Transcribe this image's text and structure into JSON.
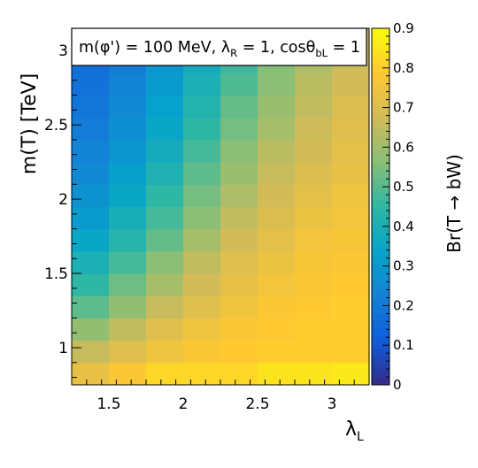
{
  "chart_data": {
    "type": "heatmap",
    "title_parts": {
      "p1": "m(φ') = 100 MeV, λ",
      "s1": "R",
      "p2": " = 1, cosθ",
      "s2": "bL",
      "p3": " = 1"
    },
    "xlabel": {
      "main": "λ",
      "sub": "L"
    },
    "ylabel": "m(T) [TeV]",
    "zlabel": "Br(T → bW)",
    "x_edges": [
      1.25,
      1.5,
      1.75,
      2.0,
      2.25,
      2.5,
      2.75,
      3.0,
      3.25
    ],
    "y_edges": [
      0.75,
      0.9,
      1.05,
      1.2,
      1.35,
      1.5,
      1.65,
      1.8,
      1.95,
      2.1,
      2.25,
      2.4,
      2.55,
      2.7,
      2.85,
      3.0,
      3.15
    ],
    "xlim": [
      1.25,
      3.25
    ],
    "ylim": [
      0.75,
      3.15
    ],
    "zlim": [
      0,
      0.9
    ],
    "x_ticks": [
      {
        "v": 1.5,
        "label": "1.5"
      },
      {
        "v": 2,
        "label": "2"
      },
      {
        "v": 2.5,
        "label": "2.5"
      },
      {
        "v": 3,
        "label": "3"
      }
    ],
    "y_ticks": [
      {
        "v": 1,
        "label": "1"
      },
      {
        "v": 1.5,
        "label": "1.5"
      },
      {
        "v": 2,
        "label": "2"
      },
      {
        "v": 2.5,
        "label": "2.5"
      },
      {
        "v": 3,
        "label": "3"
      }
    ],
    "z_ticks": [
      {
        "v": 0,
        "label": "0"
      },
      {
        "v": 0.1,
        "label": "0.1"
      },
      {
        "v": 0.2,
        "label": "0.2"
      },
      {
        "v": 0.3,
        "label": "0.3"
      },
      {
        "v": 0.4,
        "label": "0.4"
      },
      {
        "v": 0.5,
        "label": "0.5"
      },
      {
        "v": 0.6,
        "label": "0.6"
      },
      {
        "v": 0.7,
        "label": "0.7"
      },
      {
        "v": 0.8,
        "label": "0.8"
      },
      {
        "v": 0.9,
        "label": "0.9"
      }
    ],
    "values": [
      [
        0.73,
        0.78,
        0.82,
        0.82,
        0.82,
        0.85,
        0.85,
        0.86
      ],
      [
        0.66,
        0.71,
        0.75,
        0.78,
        0.79,
        0.8,
        0.8,
        0.8
      ],
      [
        0.58,
        0.65,
        0.71,
        0.75,
        0.78,
        0.79,
        0.8,
        0.8
      ],
      [
        0.51,
        0.58,
        0.66,
        0.71,
        0.75,
        0.78,
        0.79,
        0.8
      ],
      [
        0.45,
        0.53,
        0.61,
        0.68,
        0.73,
        0.76,
        0.78,
        0.79
      ],
      [
        0.4,
        0.48,
        0.57,
        0.65,
        0.71,
        0.74,
        0.77,
        0.78
      ],
      [
        0.35,
        0.43,
        0.52,
        0.61,
        0.68,
        0.72,
        0.76,
        0.77
      ],
      [
        0.31,
        0.39,
        0.48,
        0.57,
        0.65,
        0.7,
        0.74,
        0.76
      ],
      [
        0.28,
        0.35,
        0.45,
        0.54,
        0.62,
        0.68,
        0.72,
        0.75
      ],
      [
        0.25,
        0.32,
        0.41,
        0.51,
        0.59,
        0.66,
        0.7,
        0.73
      ],
      [
        0.23,
        0.29,
        0.38,
        0.48,
        0.57,
        0.64,
        0.68,
        0.72
      ],
      [
        0.21,
        0.27,
        0.35,
        0.45,
        0.54,
        0.61,
        0.67,
        0.71
      ],
      [
        0.19,
        0.25,
        0.33,
        0.42,
        0.52,
        0.59,
        0.65,
        0.7
      ],
      [
        0.18,
        0.23,
        0.31,
        0.4,
        0.49,
        0.57,
        0.64,
        0.68
      ],
      [
        0.17,
        0.21,
        0.29,
        0.38,
        0.47,
        0.56,
        0.62,
        0.67
      ],
      [
        0.16,
        0.2,
        0.27,
        0.36,
        0.45,
        0.54,
        0.6,
        0.66
      ]
    ],
    "colorscale": [
      "#352a87",
      "#0f5cdd",
      "#1481d6",
      "#06a4ca",
      "#2eb7a4",
      "#87bf77",
      "#d1bb59",
      "#fec832",
      "#f9fb0e"
    ],
    "colors": {
      "background": "#ffffff",
      "axis": "#000000"
    }
  }
}
